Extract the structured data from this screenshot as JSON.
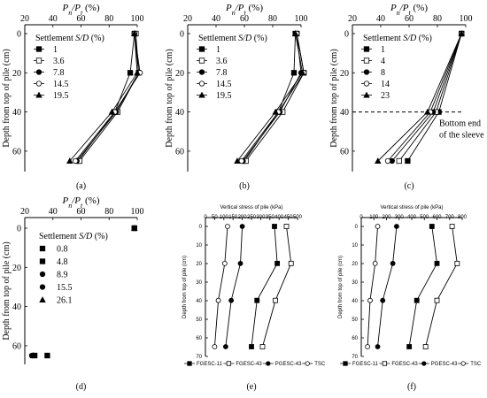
{
  "chart_data": [
    {
      "panel_label": "(a)",
      "type": "line",
      "title_parts": [
        "P",
        "n",
        "/P",
        "t",
        " (%)"
      ],
      "ylabel": "Depth from top of pile (cm)",
      "xlim": [
        20,
        100
      ],
      "ylim": [
        0,
        70
      ],
      "xticks": [
        20,
        40,
        60,
        80,
        100
      ],
      "yticks": [
        0,
        20,
        40,
        60
      ],
      "legend_title": "Settlement S/D (%)",
      "legend": {
        "pos": "left"
      },
      "series": [
        {
          "name": "1",
          "marker": "square-filled",
          "y": [
            0,
            20,
            40,
            65
          ],
          "x": [
            98,
            95,
            84,
            58
          ]
        },
        {
          "name": "3.6",
          "marker": "square-open",
          "y": [
            0,
            20,
            40,
            65
          ],
          "x": [
            99,
            101,
            86,
            59
          ]
        },
        {
          "name": "7.8",
          "marker": "circle-filled",
          "y": [
            0,
            20,
            40,
            65
          ],
          "x": [
            98,
            101,
            85,
            57
          ]
        },
        {
          "name": "14.5",
          "marker": "circle-open",
          "y": [
            0,
            20,
            40,
            65
          ],
          "x": [
            98,
            102,
            84,
            56
          ]
        },
        {
          "name": "19.5",
          "marker": "triangle-filled",
          "y": [
            0,
            20,
            40,
            65
          ],
          "x": [
            98,
            100,
            82,
            52
          ]
        }
      ]
    },
    {
      "panel_label": "(b)",
      "type": "line",
      "title_parts": [
        "P",
        "n",
        "/P",
        "t",
        " (%)"
      ],
      "ylabel": "Depth from top of pile (cm)",
      "xlim": [
        20,
        100
      ],
      "ylim": [
        0,
        70
      ],
      "xticks": [
        20,
        40,
        60,
        80,
        100
      ],
      "yticks": [
        0,
        20,
        40,
        60
      ],
      "legend_title": "Settlement S/D (%)",
      "legend": {
        "pos": "left"
      },
      "series": [
        {
          "name": "1",
          "marker": "square-filled",
          "y": [
            0,
            20,
            40,
            65
          ],
          "x": [
            96,
            95,
            84,
            60
          ]
        },
        {
          "name": "3.6",
          "marker": "square-open",
          "y": [
            0,
            20,
            40,
            65
          ],
          "x": [
            97,
            102,
            87,
            61
          ]
        },
        {
          "name": "7.8",
          "marker": "circle-filled",
          "y": [
            0,
            20,
            40,
            65
          ],
          "x": [
            97,
            100,
            85,
            59
          ]
        },
        {
          "name": "14.5",
          "marker": "circle-open",
          "y": [
            0,
            20,
            40,
            65
          ],
          "x": [
            97,
            102,
            84,
            58
          ]
        },
        {
          "name": "19.5",
          "marker": "triangle-filled",
          "y": [
            0,
            20,
            40,
            65
          ],
          "x": [
            96,
            101,
            82,
            55
          ]
        }
      ]
    },
    {
      "panel_label": "(c)",
      "type": "line",
      "title_parts": [
        "P",
        "n",
        "/P",
        "t",
        " (%)"
      ],
      "ylabel": "Depth from top of pile (cm)",
      "xlim": [
        20,
        100
      ],
      "ylim": [
        0,
        70
      ],
      "xticks": [
        20,
        40,
        60,
        80,
        100
      ],
      "yticks": [
        0,
        20,
        40,
        60
      ],
      "legend_title": "Settlement S/D (%)",
      "legend": {
        "pos": "left"
      },
      "annotation": {
        "text": [
          "Bottom end",
          "of the sleeve"
        ],
        "y": 40
      },
      "series": [
        {
          "name": "1",
          "marker": "square-filled",
          "y": [
            0,
            40,
            65
          ],
          "x": [
            97,
            81,
            59
          ]
        },
        {
          "name": "4",
          "marker": "square-open",
          "y": [
            0,
            40,
            65
          ],
          "x": [
            97,
            79,
            53
          ]
        },
        {
          "name": "8",
          "marker": "circle-filled",
          "y": [
            0,
            40,
            65
          ],
          "x": [
            97,
            77,
            48
          ]
        },
        {
          "name": "14",
          "marker": "circle-open",
          "y": [
            0,
            40,
            65
          ],
          "x": [
            97,
            75,
            45
          ]
        },
        {
          "name": "23",
          "marker": "triangle-filled",
          "y": [
            0,
            40,
            65
          ],
          "x": [
            97,
            73,
            38
          ]
        }
      ]
    },
    {
      "panel_label": "(d)",
      "type": "scatter",
      "title_parts": [
        "P",
        "n",
        "/P",
        "t",
        " (%)"
      ],
      "ylabel": "Depth from top of pile (cm)",
      "xlim": [
        20,
        100
      ],
      "ylim": [
        0,
        70
      ],
      "xticks": [
        20,
        40,
        60,
        80,
        100
      ],
      "yticks": [
        0,
        20,
        40,
        60
      ],
      "legend_title": "Settlement S/D (%)",
      "legend": {
        "pos": "left"
      },
      "series": [
        {
          "name": "0.8",
          "marker": "square-filled",
          "y": [
            0,
            65
          ],
          "x": [
            98,
            36
          ]
        },
        {
          "name": "4.8",
          "marker": "square-filled",
          "y": [
            0,
            65
          ],
          "x": [
            98,
            27
          ]
        },
        {
          "name": "8.9",
          "marker": "circle-filled",
          "y": [
            0,
            65
          ],
          "x": [
            98,
            26
          ]
        },
        {
          "name": "15.5",
          "marker": "circle-filled",
          "y": [
            0,
            65
          ],
          "x": [
            98,
            25
          ]
        },
        {
          "name": "26.1",
          "marker": "triangle-filled",
          "y": [
            0,
            65
          ],
          "x": [
            98,
            26
          ]
        }
      ]
    },
    {
      "panel_label": "(e)",
      "type": "line",
      "title_parts": [
        "Vertical stress of pile (kPa)"
      ],
      "ylabel": "Depth from top of pile (cm)",
      "xlim": [
        0,
        500
      ],
      "ylim": [
        0,
        70
      ],
      "xticks": [
        0,
        50,
        100,
        150,
        200,
        250,
        300,
        350,
        400,
        450,
        500
      ],
      "yticks": [
        0,
        10,
        20,
        30,
        40,
        50,
        60,
        70
      ],
      "legend": {
        "pos": "bottom"
      },
      "series": [
        {
          "name": "FGESC-11",
          "marker": "square-filled",
          "y": [
            0,
            20,
            40,
            65
          ],
          "x": [
            375,
            390,
            280,
            250
          ]
        },
        {
          "name": "FGESC-43",
          "marker": "square-open",
          "y": [
            0,
            20,
            40,
            65
          ],
          "x": [
            440,
            465,
            380,
            310
          ]
        },
        {
          "name": "PGESC-43",
          "marker": "circle-filled",
          "y": [
            0,
            20,
            40,
            65
          ],
          "x": [
            200,
            190,
            140,
            110
          ]
        },
        {
          "name": "TSC",
          "marker": "circle-open",
          "y": [
            0,
            20,
            40,
            65
          ],
          "x": [
            120,
            105,
            70,
            50
          ]
        }
      ]
    },
    {
      "panel_label": "(f)",
      "type": "line",
      "title_parts": [
        "Vertical stress of pile (kPa)"
      ],
      "ylabel": "Depth from top of pile (cm)",
      "xlim": [
        0,
        800
      ],
      "ylim": [
        0,
        70
      ],
      "xticks": [
        0,
        100,
        200,
        300,
        400,
        500,
        600,
        700,
        800
      ],
      "yticks": [
        0,
        10,
        20,
        30,
        40,
        50,
        60,
        70
      ],
      "legend": {
        "pos": "bottom"
      },
      "series": [
        {
          "name": "FGESC-11",
          "marker": "square-filled",
          "y": [
            0,
            20,
            40,
            65
          ],
          "x": [
            560,
            600,
            440,
            380
          ]
        },
        {
          "name": "FGESC-43",
          "marker": "square-open",
          "y": [
            0,
            20,
            40,
            65
          ],
          "x": [
            720,
            760,
            600,
            510
          ]
        },
        {
          "name": "PGESC-43",
          "marker": "circle-filled",
          "y": [
            0,
            20,
            40,
            65
          ],
          "x": [
            280,
            250,
            170,
            130
          ]
        },
        {
          "name": "TSC",
          "marker": "circle-open",
          "y": [
            0,
            20,
            40,
            65
          ],
          "x": [
            130,
            110,
            70,
            50
          ]
        }
      ]
    }
  ]
}
